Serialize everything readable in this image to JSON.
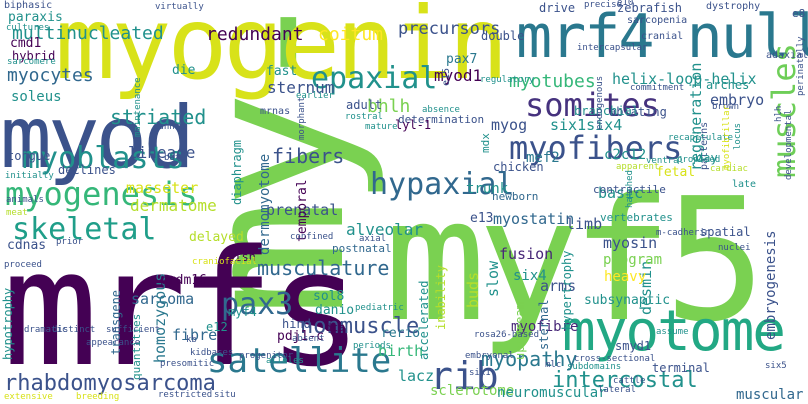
{
  "word_cloud": {
    "words": [
      {
        "text": "my-f-5",
        "color": "#7ad151"
      },
      {
        "text": "mrfs",
        "color": "#440154"
      },
      {
        "text": "myf5",
        "color": "#7ad151"
      },
      {
        "text": "myogenin",
        "color": "#d8e219"
      },
      {
        "text": "myod",
        "color": "#3b528b"
      },
      {
        "text": "mrf4 null",
        "color": "#2a788e"
      },
      {
        "text": "myotome",
        "color": "#22a884"
      },
      {
        "text": "satellite",
        "color": "#2a788e"
      },
      {
        "text": "somites",
        "color": "#46327e"
      },
      {
        "text": "myogenesis",
        "color": "#35b779"
      },
      {
        "text": "myofibers",
        "color": "#3b528b"
      },
      {
        "text": "myoblasts",
        "color": "#21918c"
      },
      {
        "text": "epaxial",
        "color": "#21918c"
      },
      {
        "text": "hypaxial",
        "color": "#31688e"
      },
      {
        "text": "skeletal",
        "color": "#1f9e89"
      },
      {
        "text": "muscles",
        "color": "#6ece58"
      },
      {
        "text": "rib",
        "color": "#3b528b"
      },
      {
        "text": "pax3",
        "color": "#31688e"
      },
      {
        "text": "rhabdomyosarcoma",
        "color": "#3b528b"
      },
      {
        "text": "intercostal",
        "color": "#21918c"
      },
      {
        "text": "musculature",
        "color": "#31688e"
      },
      {
        "text": "myopathy",
        "color": "#2a788e"
      },
      {
        "text": "striated",
        "color": "#21918c"
      },
      {
        "text": "fibers",
        "color": "#3b528b"
      },
      {
        "text": "nonmuscle",
        "color": "#3b528b"
      },
      {
        "text": "myocytes",
        "color": "#31688e"
      },
      {
        "text": "myotubes",
        "color": "#35b779"
      },
      {
        "text": "multinucleated",
        "color": "#21918c"
      },
      {
        "text": "redundant",
        "color": "#440154"
      },
      {
        "text": "coitum",
        "color": "#fde725"
      },
      {
        "text": "precursors",
        "color": "#3b528b"
      },
      {
        "text": "dermatome",
        "color": "#b5de2b"
      },
      {
        "text": "lineage",
        "color": "#3b528b"
      },
      {
        "text": "alveolar",
        "color": "#21918c"
      },
      {
        "text": "sternum",
        "color": "#3b528b"
      },
      {
        "text": "bhlh",
        "color": "#7ad151"
      },
      {
        "text": "myod1",
        "color": "#440154"
      },
      {
        "text": "helix-loop-helix",
        "color": "#21918c"
      },
      {
        "text": "regeneration",
        "color": "#21918c"
      },
      {
        "text": "embryo",
        "color": "#3b528b"
      },
      {
        "text": "myostatin",
        "color": "#31688e"
      },
      {
        "text": "myosin",
        "color": "#3b528b"
      },
      {
        "text": "desmin",
        "color": "#21918c"
      },
      {
        "text": "fusion",
        "color": "#482878"
      },
      {
        "text": "myog",
        "color": "#3b528b"
      },
      {
        "text": "six1six4",
        "color": "#21918c"
      },
      {
        "text": "masseter",
        "color": "#d8e219"
      },
      {
        "text": "prenatal",
        "color": "#3b528b"
      },
      {
        "text": "basic",
        "color": "#21918c"
      },
      {
        "text": "limb",
        "color": "#3b528b"
      },
      {
        "text": "arms",
        "color": "#3b528b"
      },
      {
        "text": "sarcoma",
        "color": "#31688e"
      },
      {
        "text": "slow",
        "color": "#21918c"
      },
      {
        "text": "buds",
        "color": "#b5de2b"
      },
      {
        "text": "fibre",
        "color": "#31688e"
      },
      {
        "text": "homozygous",
        "color": "#2a788e"
      },
      {
        "text": "myofibre",
        "color": "#482878"
      },
      {
        "text": "birth",
        "color": "#35b779"
      },
      {
        "text": "lacz",
        "color": "#21918c"
      },
      {
        "text": "sclerotome",
        "color": "#7ad151"
      },
      {
        "text": "neuromuscular",
        "color": "#21918c"
      },
      {
        "text": "muscular",
        "color": "#31688e"
      },
      {
        "text": "embryogenesis",
        "color": "#3b528b"
      },
      {
        "text": "six4",
        "color": "#21918c"
      },
      {
        "text": "program",
        "color": "#7ad151"
      },
      {
        "text": "heavy",
        "color": "#fde725"
      },
      {
        "text": "trunk",
        "color": "#21918c"
      },
      {
        "text": "mef2",
        "color": "#2a788e"
      },
      {
        "text": "c2c12",
        "color": "#21918c"
      },
      {
        "text": "e13",
        "color": "#3b528b"
      },
      {
        "text": "soleus",
        "color": "#21918c"
      },
      {
        "text": "paraxis",
        "color": "#21918c"
      },
      {
        "text": "cmd1",
        "color": "#440154"
      },
      {
        "text": "hybrid",
        "color": "#440154"
      },
      {
        "text": "die",
        "color": "#21918c"
      },
      {
        "text": "fast",
        "color": "#21918c"
      },
      {
        "text": "pax7",
        "color": "#2a788e"
      },
      {
        "text": "tongue",
        "color": "#3b528b"
      },
      {
        "text": "declines",
        "color": "#3b528b"
      },
      {
        "text": "delayed",
        "color": "#b5de2b"
      },
      {
        "text": "cdnas",
        "color": "#3b528b"
      },
      {
        "text": "diaphragm",
        "color": "#21918c"
      },
      {
        "text": "dermomyotome",
        "color": "#31688e"
      },
      {
        "text": "temporal",
        "color": "#440154"
      },
      {
        "text": "sol8",
        "color": "#21918c"
      },
      {
        "text": "danio",
        "color": "#21918c"
      },
      {
        "text": "myf4",
        "color": "#21918c"
      },
      {
        "text": "e12",
        "color": "#21918c"
      },
      {
        "text": "pdj1-c",
        "color": "#440154"
      },
      {
        "text": "prdm16",
        "color": "#440154"
      },
      {
        "text": "fish",
        "color": "#440154"
      },
      {
        "text": "rerio",
        "color": "#2a788e"
      },
      {
        "text": "hind",
        "color": "#3b528b"
      },
      {
        "text": "transgene",
        "color": "#31688e"
      },
      {
        "text": "hypotrophy",
        "color": "#21918c"
      },
      {
        "text": "quantities",
        "color": "#21918c"
      },
      {
        "text": "smyd1",
        "color": "#3b528b"
      },
      {
        "text": "subsynaptic",
        "color": "#21918c"
      },
      {
        "text": "terminal",
        "color": "#3b528b"
      },
      {
        "text": "hypertrophy",
        "color": "#21918c"
      },
      {
        "text": "spatial",
        "color": "#3b528b"
      },
      {
        "text": "fetal",
        "color": "#d8e219"
      },
      {
        "text": "sternal",
        "color": "#31688e"
      },
      {
        "text": "inability",
        "color": "#b5de2b"
      },
      {
        "text": "accelerated",
        "color": "#21918c"
      },
      {
        "text": "upstream",
        "color": "#7ad151"
      },
      {
        "text": "ablating",
        "color": "#3b528b"
      },
      {
        "text": "branchial",
        "color": "#21918c"
      },
      {
        "text": "arches",
        "color": "#21918c"
      },
      {
        "text": "double",
        "color": "#3b528b"
      },
      {
        "text": "drive",
        "color": "#3b528b"
      },
      {
        "text": "zebrafish",
        "color": "#3b528b"
      },
      {
        "text": "determination",
        "color": "#3b528b"
      },
      {
        "text": "adult",
        "color": "#3b528b"
      },
      {
        "text": "newborn",
        "color": "#31688e"
      },
      {
        "text": "chicken",
        "color": "#3b528b"
      },
      {
        "text": "contractile",
        "color": "#3b528b"
      },
      {
        "text": "vertebrates",
        "color": "#21918c"
      },
      {
        "text": "postnatal",
        "color": "#31688e"
      },
      {
        "text": "dta",
        "color": "#440154"
      },
      {
        "text": "lyl-1",
        "color": "#440154"
      },
      {
        "text": "mdx",
        "color": "#21918c"
      },
      {
        "text": "e8",
        "color": "#3b528b"
      },
      {
        "text": "e15",
        "color": "#3b528b"
      },
      {
        "text": "mrnas",
        "color": "#3b528b"
      },
      {
        "text": "sarcopenia",
        "color": "#3b528b"
      },
      {
        "text": "cranial",
        "color": "#3b528b"
      },
      {
        "text": "dystrophy",
        "color": "#3b528b"
      },
      {
        "text": "adaxial",
        "color": "#3b528b"
      },
      {
        "text": "patterns",
        "color": "#3b528b"
      },
      {
        "text": "day",
        "color": "#21918c"
      },
      {
        "text": "late",
        "color": "#21918c"
      },
      {
        "text": "cardiac",
        "color": "#b5de2b"
      },
      {
        "text": "cultures",
        "color": "#21918c"
      },
      {
        "text": "biphasic",
        "color": "#3b528b"
      },
      {
        "text": "sarcomere",
        "color": "#21918c"
      },
      {
        "text": "virtually",
        "color": "#3b528b"
      },
      {
        "text": "precise",
        "color": "#3b528b"
      },
      {
        "text": "e10",
        "color": "#3b528b"
      },
      {
        "text": "regulatory",
        "color": "#21918c"
      },
      {
        "text": "commitment",
        "color": "#3b528b"
      },
      {
        "text": "brown",
        "color": "#3b528b"
      },
      {
        "text": "mature",
        "color": "#21918c"
      },
      {
        "text": "rostral",
        "color": "#21918c"
      },
      {
        "text": "absence",
        "color": "#21918c"
      },
      {
        "text": "earlier",
        "color": "#21918c"
      },
      {
        "text": "morphant",
        "color": "#3b528b"
      },
      {
        "text": "endogenous",
        "color": "#3b528b"
      },
      {
        "text": "ventral",
        "color": "#21918c"
      },
      {
        "text": "proposed",
        "color": "#21918c"
      },
      {
        "text": "recapitulate",
        "color": "#21918c"
      },
      {
        "text": "apparent",
        "color": "#b5de2b"
      },
      {
        "text": "maintenance",
        "color": "#21918c"
      },
      {
        "text": "initially",
        "color": "#21918c"
      },
      {
        "text": "bat",
        "color": "#3b528b"
      },
      {
        "text": "canntg",
        "color": "#3b528b"
      },
      {
        "text": "meat",
        "color": "#b5de2b"
      },
      {
        "text": "animals",
        "color": "#3b528b"
      },
      {
        "text": "hatched",
        "color": "#21918c"
      },
      {
        "text": "m-cadherin",
        "color": "#3b528b"
      },
      {
        "text": "confined",
        "color": "#3b528b"
      },
      {
        "text": "axial",
        "color": "#3b528b"
      },
      {
        "text": "periods",
        "color": "#21918c"
      },
      {
        "text": "alleles",
        "color": "#21918c"
      },
      {
        "text": "assume",
        "color": "#21918c"
      },
      {
        "text": "nuclei",
        "color": "#3b528b"
      },
      {
        "text": "kb",
        "color": "#3b528b"
      },
      {
        "text": "absent",
        "color": "#3b528b"
      },
      {
        "text": "prior",
        "color": "#3b528b"
      },
      {
        "text": "proceed",
        "color": "#3b528b"
      },
      {
        "text": "dramatic",
        "color": "#3b528b"
      },
      {
        "text": "distinct",
        "color": "#3b528b"
      },
      {
        "text": "sufficient",
        "color": "#3b528b"
      },
      {
        "text": "appearance",
        "color": "#3b528b"
      },
      {
        "text": "kidbases",
        "color": "#3b528b"
      },
      {
        "text": "presomitic",
        "color": "#3b528b"
      },
      {
        "text": "progenitor",
        "color": "#3b528b"
      },
      {
        "text": "restricted",
        "color": "#3b528b"
      },
      {
        "text": "situ",
        "color": "#3b528b"
      },
      {
        "text": "embryonal",
        "color": "#3b528b"
      },
      {
        "text": "pediatric",
        "color": "#21918c"
      },
      {
        "text": "mlc",
        "color": "#3b528b"
      },
      {
        "text": "six1",
        "color": "#3b528b"
      },
      {
        "text": "subdomains",
        "color": "#21918c"
      },
      {
        "text": "cross-sectional",
        "color": "#3b528b"
      },
      {
        "text": "six5",
        "color": "#3b528b"
      },
      {
        "text": "cattle",
        "color": "#3b528b"
      },
      {
        "text": "lateral",
        "color": "#3b528b"
      },
      {
        "text": "extensive",
        "color": "#d8e219"
      },
      {
        "text": "breeding",
        "color": "#d8e219"
      },
      {
        "text": "craniofacial",
        "color": "#d8e219"
      },
      {
        "text": "rosa26-based",
        "color": "#3b528b"
      },
      {
        "text": "intercapsular",
        "color": "#3b528b"
      },
      {
        "text": "hlh",
        "color": "#3b528b"
      },
      {
        "text": "myofibrillar",
        "color": "#d8e219"
      },
      {
        "text": "perinatally",
        "color": "#3b528b"
      },
      {
        "text": "locus",
        "color": "#21918c"
      },
      {
        "text": "developmental",
        "color": "#3b528b"
      }
    ]
  }
}
